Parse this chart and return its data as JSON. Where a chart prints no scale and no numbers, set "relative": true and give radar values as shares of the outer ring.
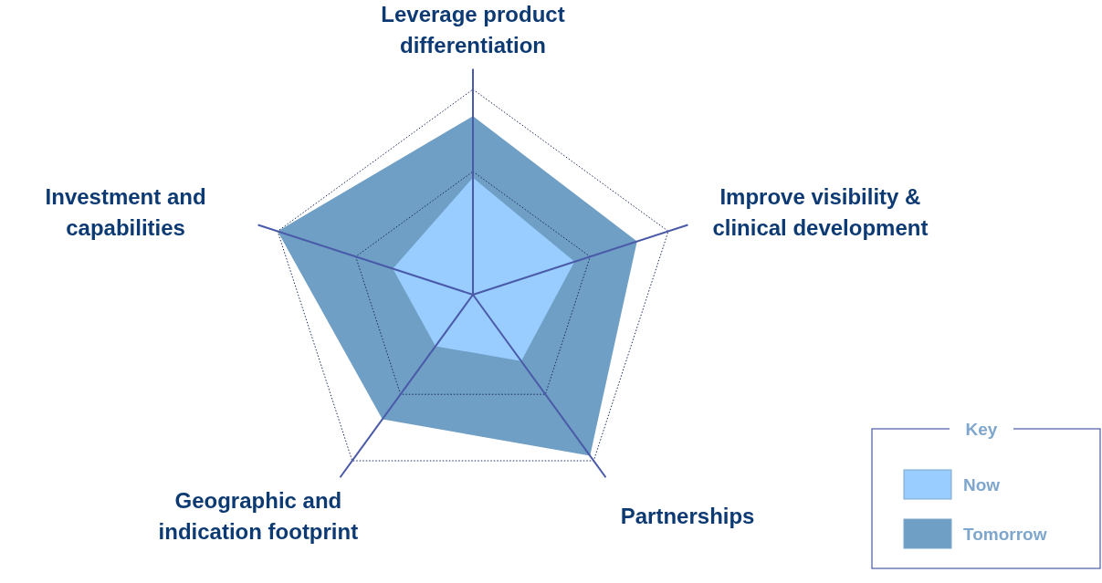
{
  "chart_data": {
    "type": "radar",
    "relative": true,
    "categories": [
      "Leverage product differentiation",
      "Improve visibility & clinical development",
      "Partnerships",
      "Geographic and indication footprint",
      "Investment and capabilities"
    ],
    "series": [
      {
        "name": "Tomorrow",
        "color": "#6f9fc4",
        "values": [
          0.87,
          0.84,
          0.97,
          0.75,
          1.0
        ]
      },
      {
        "name": "Now",
        "color": "#99ccff",
        "values": [
          0.57,
          0.52,
          0.4,
          0.31,
          0.41
        ]
      }
    ],
    "grid": true,
    "legend": "bottom right",
    "legend_title": "Key"
  }
}
